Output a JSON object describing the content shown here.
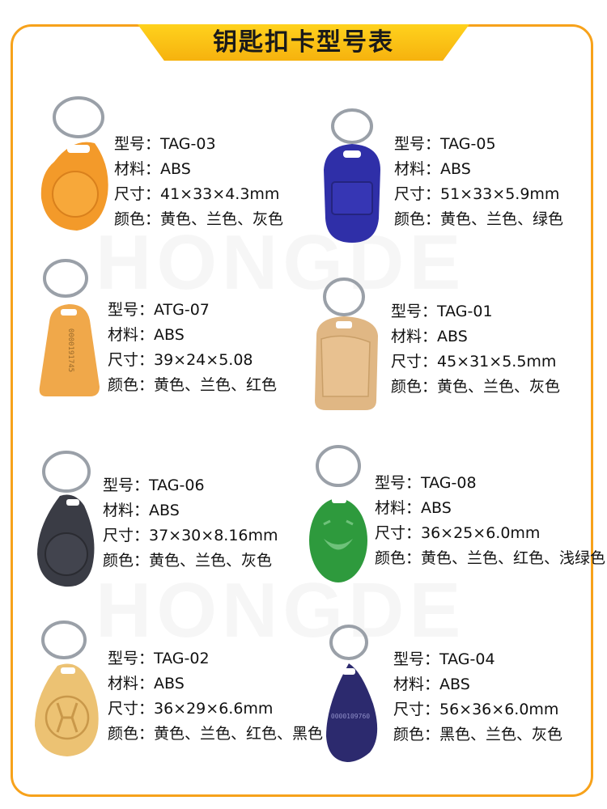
{
  "header": {
    "title": "钥匙扣卡型号表"
  },
  "watermark": {
    "text": "HONGDE"
  },
  "products": [
    {
      "model": "型号：TAG-03",
      "material": "材料：ABS",
      "size": "尺寸：41×33×4.3mm",
      "colors": "颜色：黄色、兰色、灰色",
      "tag_color": "#f39a2a"
    },
    {
      "model": "型号：TAG-05",
      "material": "材料：ABS",
      "size": "尺寸：51×33×5.9mm",
      "colors": "颜色：黄色、兰色、绿色",
      "tag_color": "#2f2fa8"
    },
    {
      "model": "型号：ATG-07",
      "material": "材料：ABS",
      "size": "尺寸：39×24×5.08",
      "colors": "颜色：黄色、兰色、红色",
      "tag_color": "#f0a84a",
      "printed_number": "0000191745"
    },
    {
      "model": "型号：TAG-01",
      "material": "材料：ABS",
      "size": "尺寸：45×31×5.5mm",
      "colors": "颜色：黄色、兰色、灰色",
      "tag_color": "#e0b784"
    },
    {
      "model": "型号：TAG-06",
      "material": "材料：ABS",
      "size": "尺寸：37×30×8.16mm",
      "colors": "颜色：黄色、兰色、灰色",
      "tag_color": "#3a3c45"
    },
    {
      "model": "型号：TAG-08",
      "material": "材料：ABS",
      "size": "尺寸：36×25×6.0mm",
      "colors": "颜色：黄色、兰色、红色、浅绿色",
      "tag_color": "#2e9a3d"
    },
    {
      "model": "型号：TAG-02",
      "material": "材料：ABS",
      "size": "尺寸：36×29×6.6mm",
      "colors": "颜色：黄色、兰色、红色、黑色",
      "tag_color": "#ecc273"
    },
    {
      "model": "型号：TAG-04",
      "material": "材料：ABS",
      "size": "尺寸：56×36×6.0mm",
      "colors": "颜色：黑色、兰色、灰色",
      "tag_color": "#2c2a6e",
      "printed_number": "0000109760"
    }
  ]
}
